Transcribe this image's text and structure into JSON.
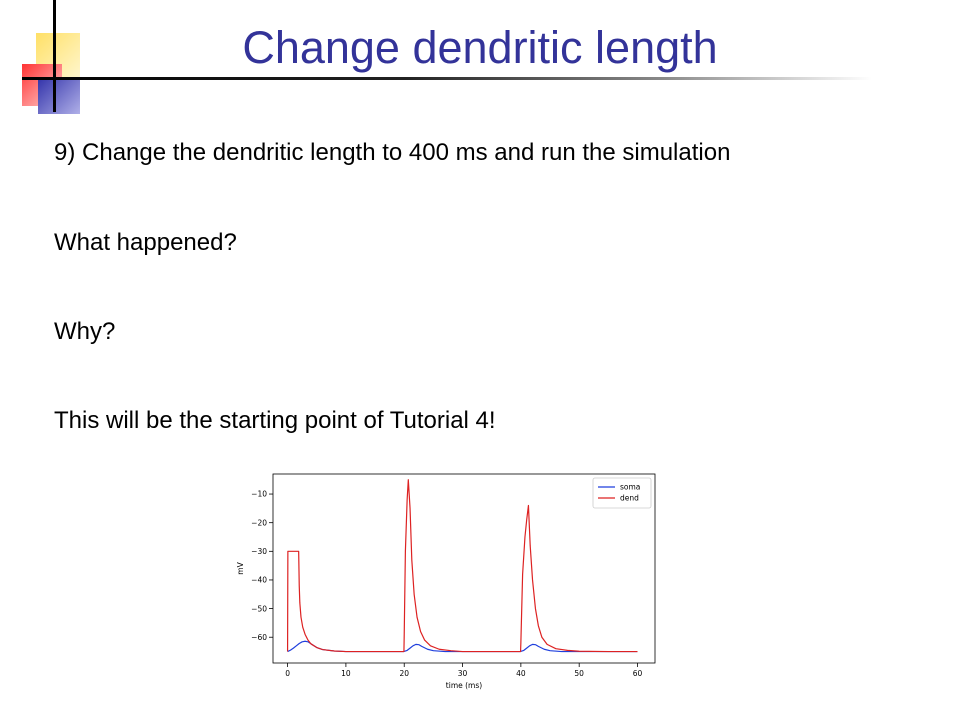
{
  "slide": {
    "title": "Change dendritic length",
    "lines": [
      "9) Change the dendritic length to 400 ms and run the simulation",
      "What happened?",
      "Why?",
      "This will be the starting point of Tutorial 4!"
    ]
  },
  "colors": {
    "title": "#333399",
    "deco_yellow": "#ffcc33",
    "deco_red": "#ff3333",
    "deco_blue": "#3333aa"
  },
  "chart_data": {
    "type": "line",
    "title": "",
    "xlabel": "time (ms)",
    "ylabel": "mV",
    "xlim": [
      -2.5,
      63
    ],
    "ylim": [
      -69,
      -3
    ],
    "xticks": [
      0,
      10,
      20,
      30,
      40,
      50,
      60
    ],
    "yticks": [
      -60,
      -50,
      -40,
      -30,
      -20,
      -10
    ],
    "ytick_labels": [
      "−60",
      "−50",
      "−40",
      "−30",
      "−20",
      "−10"
    ],
    "legend_position": "top-right",
    "series": [
      {
        "name": "soma",
        "color": "#1f3fdd",
        "x": [
          0,
          0.5,
          1,
          1.5,
          2,
          2.5,
          3,
          3.5,
          4,
          5,
          6,
          8,
          10,
          15,
          19.9,
          20.5,
          21,
          21.5,
          22,
          22.5,
          23,
          24,
          25,
          27,
          30,
          35,
          39.9,
          40.5,
          41,
          41.5,
          42,
          42.5,
          43,
          44,
          45,
          47,
          50,
          55,
          60
        ],
        "y": [
          -65,
          -64.5,
          -63.8,
          -63,
          -62.2,
          -61.6,
          -61.4,
          -61.6,
          -62.3,
          -63.6,
          -64.3,
          -64.8,
          -65,
          -65,
          -65,
          -64.6,
          -63.8,
          -63,
          -62.5,
          -62.6,
          -63.2,
          -64.2,
          -64.7,
          -65,
          -65,
          -65,
          -65,
          -64.6,
          -63.8,
          -63,
          -62.5,
          -62.6,
          -63.2,
          -64.2,
          -64.7,
          -65,
          -65,
          -65,
          -65
        ]
      },
      {
        "name": "dend",
        "color": "#dd2222",
        "x": [
          0,
          0.05,
          1.9,
          2.0,
          2.1,
          2.3,
          2.6,
          3,
          3.5,
          4,
          5,
          6,
          8,
          10,
          15,
          19.95,
          20.0,
          20.2,
          20.5,
          20.7,
          21,
          21.3,
          21.7,
          22.2,
          22.8,
          23.5,
          24.5,
          26,
          28,
          30,
          35,
          39.95,
          40.0,
          40.3,
          40.7,
          41,
          41.3,
          41.6,
          42,
          42.5,
          43,
          43.6,
          44.5,
          46,
          48,
          50,
          55,
          60
        ],
        "y": [
          -65,
          -30,
          -30,
          -42,
          -48,
          -53,
          -56.5,
          -59,
          -61,
          -62.3,
          -63.6,
          -64.3,
          -64.8,
          -65,
          -65,
          -65,
          -59,
          -30,
          -12,
          -5,
          -15,
          -33,
          -45,
          -53,
          -58,
          -61,
          -63,
          -64.2,
          -64.7,
          -65,
          -65,
          -65,
          -62,
          -38,
          -25,
          -19,
          -14,
          -28,
          -40,
          -50,
          -56,
          -60,
          -62.5,
          -64,
          -64.6,
          -64.9,
          -65,
          -65
        ]
      }
    ]
  }
}
